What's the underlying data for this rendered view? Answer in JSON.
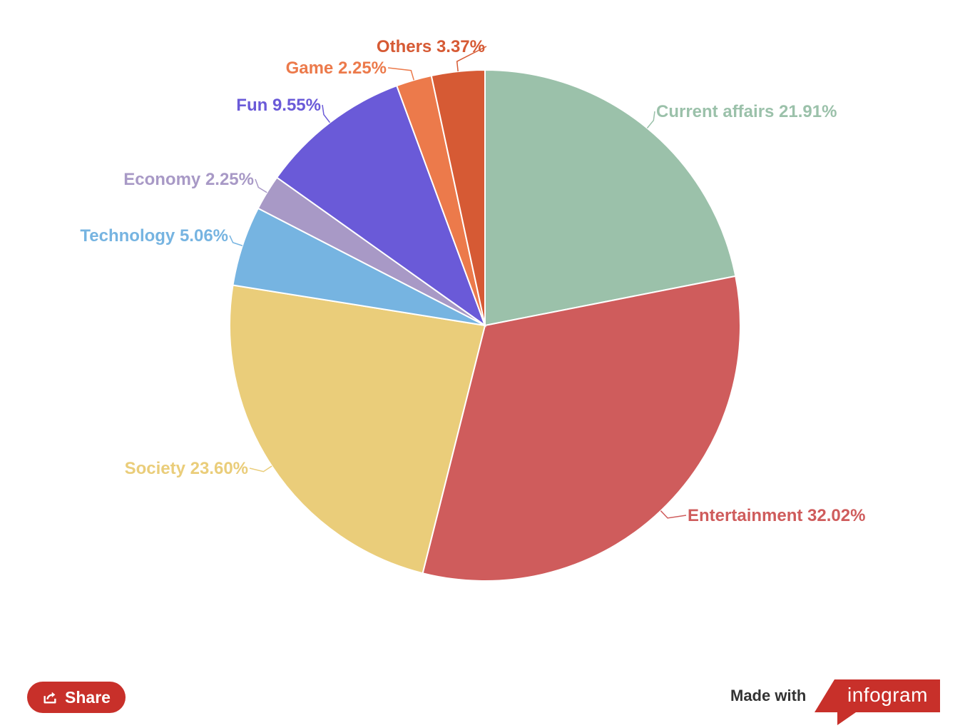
{
  "chart_data": {
    "type": "pie",
    "title": "",
    "start_angle_deg": 0,
    "direction": "clockwise",
    "slices": [
      {
        "label": "Current affairs",
        "value": 21.91,
        "display": "Current affairs 21.91%",
        "color": "#9bc1aa"
      },
      {
        "label": "Entertainment",
        "value": 32.02,
        "display": "Entertainment 32.02%",
        "color": "#cf5c5c"
      },
      {
        "label": "Society",
        "value": 23.6,
        "display": "Society 23.60%",
        "color": "#eacd7a"
      },
      {
        "label": "Technology",
        "value": 5.06,
        "display": "Technology 5.06%",
        "color": "#76b4e1"
      },
      {
        "label": "Economy",
        "value": 2.25,
        "display": "Economy 2.25%",
        "color": "#a899c6"
      },
      {
        "label": "Fun",
        "value": 9.55,
        "display": "Fun 9.55%",
        "color": "#6a5ad8"
      },
      {
        "label": "Game",
        "value": 2.25,
        "display": "Game 2.25%",
        "color": "#ec7a4b"
      },
      {
        "label": "Others",
        "value": 3.37,
        "display": "Others 3.37%",
        "color": "#d65a34"
      }
    ]
  },
  "footer": {
    "share_label": "Share",
    "share_icon": "share-icon",
    "made_with": "Made with",
    "brand": "infogram",
    "brand_color": "#c8302a"
  }
}
